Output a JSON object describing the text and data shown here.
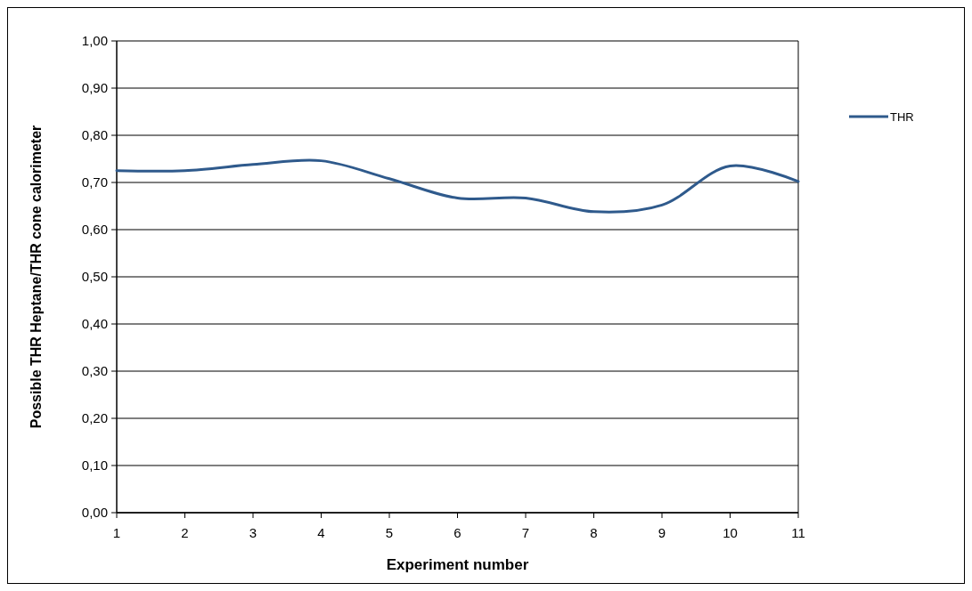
{
  "chart_data": {
    "type": "line",
    "xlabel": "Experiment number",
    "ylabel": "Possible THR Heptane/THR cone calorimeter",
    "x": [
      1,
      2,
      3,
      4,
      5,
      6,
      7,
      8,
      9,
      10,
      11
    ],
    "series": [
      {
        "name": "THR",
        "color": "#2f5a8c",
        "values": [
          0.725,
          0.725,
          0.738,
          0.746,
          0.708,
          0.667,
          0.667,
          0.638,
          0.652,
          0.735,
          0.702
        ]
      }
    ],
    "xlim": [
      1,
      11
    ],
    "xticks": [
      1,
      2,
      3,
      4,
      5,
      6,
      7,
      8,
      9,
      10,
      11
    ],
    "ylim": [
      0,
      1
    ],
    "yticks": [
      {
        "value": 0,
        "label": "0,00"
      },
      {
        "value": 0.1,
        "label": "0,10"
      },
      {
        "value": 0.2,
        "label": "0,20"
      },
      {
        "value": 0.3,
        "label": "0,30"
      },
      {
        "value": 0.4,
        "label": "0,40"
      },
      {
        "value": 0.5,
        "label": "0,50"
      },
      {
        "value": 0.6,
        "label": "0,60"
      },
      {
        "value": 0.7,
        "label": "0,70"
      },
      {
        "value": 0.8,
        "label": "0,80"
      },
      {
        "value": 0.9,
        "label": "0,90"
      },
      {
        "value": 1,
        "label": "1,00"
      }
    ],
    "grid": "y",
    "legend": "right",
    "marker": "none",
    "line_style": "solid"
  }
}
